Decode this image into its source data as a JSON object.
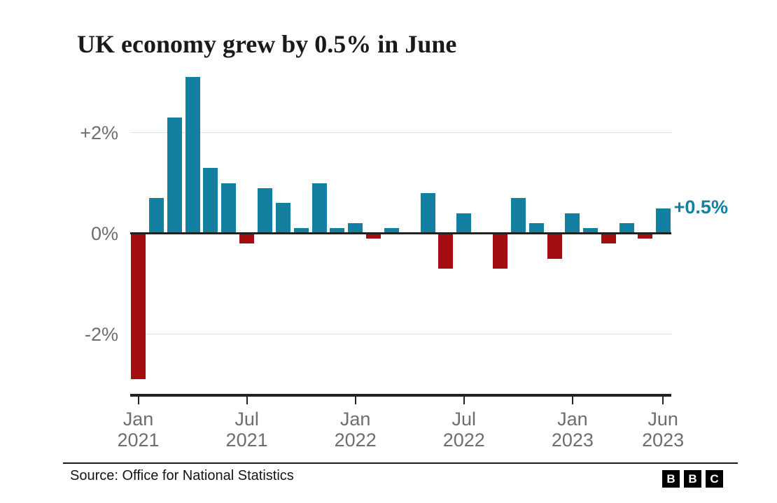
{
  "title": "UK economy grew by 0.5% in June",
  "annotation": {
    "text": "+0.5%",
    "color": "#1380A1"
  },
  "y_axis": {
    "labels": [
      {
        "text": "+2%",
        "value": 2
      },
      {
        "text": "0%",
        "value": 0
      },
      {
        "text": "-2%",
        "value": -2
      }
    ]
  },
  "x_axis": {
    "ticks": [
      {
        "month": "Jan",
        "year": "2021",
        "index": 0
      },
      {
        "month": "Jul",
        "year": "2021",
        "index": 6
      },
      {
        "month": "Jan",
        "year": "2022",
        "index": 12
      },
      {
        "month": "Jul",
        "year": "2022",
        "index": 18
      },
      {
        "month": "Jan",
        "year": "2023",
        "index": 24
      },
      {
        "month": "Jun",
        "year": "2023",
        "index": 29
      }
    ]
  },
  "chart_data": {
    "type": "bar",
    "title": "UK economy grew by 0.5% in June",
    "x": [
      "Jan 2021",
      "Feb 2021",
      "Mar 2021",
      "Apr 2021",
      "May 2021",
      "Jun 2021",
      "Jul 2021",
      "Aug 2021",
      "Sep 2021",
      "Oct 2021",
      "Nov 2021",
      "Dec 2021",
      "Jan 2022",
      "Feb 2022",
      "Mar 2022",
      "Apr 2022",
      "May 2022",
      "Jun 2022",
      "Jul 2022",
      "Aug 2022",
      "Sep 2022",
      "Oct 2022",
      "Nov 2022",
      "Dec 2022",
      "Jan 2023",
      "Feb 2023",
      "Mar 2023",
      "Apr 2023",
      "May 2023",
      "Jun 2023"
    ],
    "values": [
      -2.9,
      0.7,
      2.3,
      3.1,
      1.3,
      1.0,
      -0.2,
      0.9,
      0.6,
      0.1,
      1.0,
      0.1,
      0.2,
      -0.1,
      0.1,
      0.0,
      0.8,
      -0.7,
      0.4,
      0.0,
      -0.7,
      0.7,
      0.2,
      -0.5,
      0.4,
      0.1,
      -0.2,
      0.2,
      -0.1,
      0.5
    ],
    "unit": "%",
    "ylim": [
      -3.1,
      3.2
    ],
    "gridlines": [
      2,
      -2
    ],
    "grid": "horizontal-only",
    "legend": "none",
    "colors": {
      "positive_bar": "#1380A1",
      "negative_bar": "#A40E11"
    }
  },
  "footer": {
    "source": "Source: Office for National Statistics",
    "logo_letters": [
      "B",
      "B",
      "C"
    ]
  }
}
